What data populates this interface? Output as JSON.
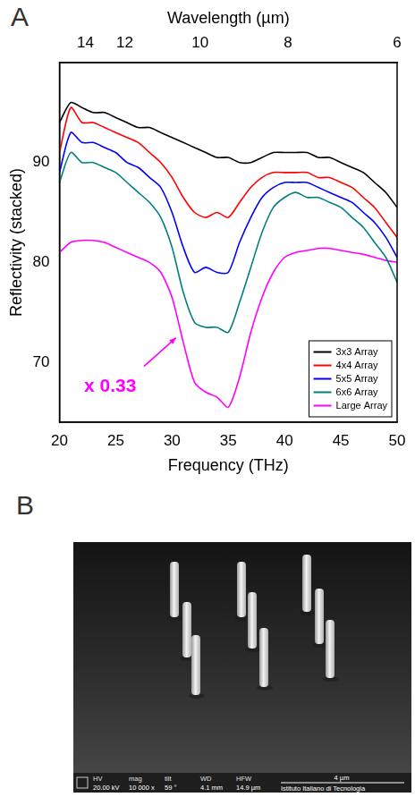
{
  "chart_data": {
    "type": "line",
    "panel_label": "A",
    "x_label": "Frequency (THz)",
    "y_label": "Reflectivity (stacked)",
    "x2_label": "Wavelength (µm)",
    "xlim": [
      20,
      50
    ],
    "xticks": [
      20,
      25,
      30,
      35,
      40,
      45,
      50
    ],
    "x2lim": [
      20,
      50
    ],
    "x2ticks": [
      {
        "value": 22.3,
        "label": "14"
      },
      {
        "value": 25.8,
        "label": "12"
      },
      {
        "value": 32.5,
        "label": "10"
      },
      {
        "value": 40.3,
        "label": "8"
      },
      {
        "value": 50,
        "label": "6"
      }
    ],
    "ylim": [
      64,
      100
    ],
    "yticks": [
      70,
      80,
      90
    ],
    "grid": false,
    "legend": "lower right",
    "annotation": {
      "text": "x 0.33",
      "series": "Large Array"
    },
    "x": [
      20,
      21,
      22,
      23,
      24,
      25,
      26,
      27,
      28,
      29,
      30,
      31,
      32,
      33,
      34,
      35,
      36,
      37,
      38,
      39,
      40,
      41,
      42,
      43,
      44,
      45,
      46,
      47,
      48,
      49,
      50
    ],
    "series": [
      {
        "name": "3x3 Array",
        "color": "#000000",
        "values": [
          94,
          96,
          95.5,
          95,
          95,
          94.5,
          94,
          93.5,
          93.5,
          93,
          92.5,
          92,
          91.5,
          91,
          90.5,
          90.5,
          90,
          90,
          90.5,
          91,
          91,
          91,
          91,
          90.5,
          90.5,
          90,
          89.5,
          89,
          88,
          87,
          85.5
        ]
      },
      {
        "name": "4x4 Array",
        "color": "#ff0000",
        "values": [
          91,
          95.5,
          94,
          94,
          93.5,
          93,
          92.5,
          92,
          91,
          90,
          88.5,
          86.5,
          85,
          84.5,
          85,
          84.5,
          86,
          87.5,
          88.5,
          89,
          89,
          89,
          89,
          88.5,
          88.5,
          88,
          87.5,
          86.5,
          85.5,
          84,
          82.5
        ]
      },
      {
        "name": "5x5 Array",
        "color": "#0000ff",
        "values": [
          89,
          93,
          92,
          92,
          91.5,
          91,
          90,
          89.5,
          88.5,
          87.5,
          85,
          81.5,
          79,
          79.5,
          79,
          79,
          82,
          84.5,
          86.5,
          87.5,
          88,
          88,
          88,
          87.5,
          87,
          86.5,
          86,
          85,
          84,
          82.5,
          80.5
        ]
      },
      {
        "name": "6x6 Array",
        "color": "#008080",
        "values": [
          88,
          91,
          90,
          90,
          89.5,
          89,
          88,
          87,
          86,
          84.5,
          81.5,
          77,
          74,
          73.5,
          73.5,
          73,
          76,
          79.5,
          83,
          85.5,
          86.5,
          87,
          86.5,
          86.5,
          86,
          85.5,
          84.5,
          83.5,
          82,
          80.5,
          78
        ]
      },
      {
        "name": "Large Array",
        "color": "#ff00ff",
        "values": [
          81,
          82,
          82.2,
          82.2,
          82,
          81.5,
          81,
          80.5,
          80,
          79,
          76.5,
          72,
          68,
          67,
          66.5,
          65.5,
          68.5,
          73,
          76.5,
          79,
          80.5,
          81,
          81.2,
          81.4,
          81.4,
          81.2,
          81,
          80.8,
          80.5,
          80.2,
          80
        ]
      }
    ]
  },
  "image_panel": {
    "panel_label": "B",
    "info_bar": [
      {
        "header": "HV",
        "value": "20.00 kV"
      },
      {
        "header": "mag",
        "value": "10 000 x"
      },
      {
        "header": "tilt",
        "value": "59 °"
      },
      {
        "header": "WD",
        "value": "4.1 mm"
      },
      {
        "header": "HFW",
        "value": "14.9 µm"
      }
    ],
    "scale_bar": "4 µm",
    "institute": "Istituto Italiano di Tecnologia"
  }
}
